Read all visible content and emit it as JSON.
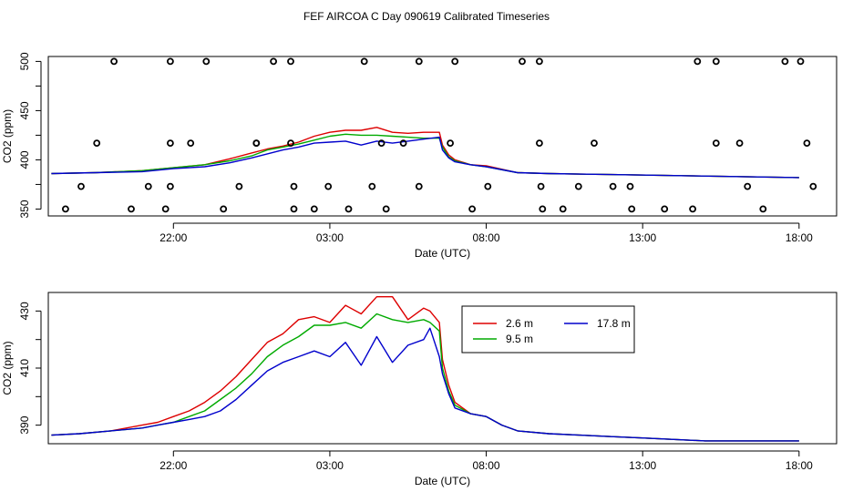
{
  "title": "FEF AIRCOA C  Day 090619  Calibrated Timeseries",
  "chart_data": [
    {
      "type": "scatter+line",
      "id": "top",
      "xlabel": "Date (UTC)",
      "ylabel": "CO2 (ppm)",
      "xlim": [
        -4.0,
        21.2
      ],
      "ylim": [
        343,
        505
      ],
      "x_ticks": [
        {
          "v": 0,
          "label": "22:00"
        },
        {
          "v": 5,
          "label": "03:00"
        },
        {
          "v": 10,
          "label": "08:00"
        },
        {
          "v": 15,
          "label": "13:00"
        },
        {
          "v": 20,
          "label": "18:00"
        }
      ],
      "y_ticks": [
        {
          "v": 350,
          "label": "350"
        },
        {
          "v": 400,
          "label": "400"
        },
        {
          "v": 450,
          "label": "450"
        },
        {
          "v": 500,
          "label": "500"
        }
      ],
      "markers": {
        "level_500": [
          -1.9,
          -0.1,
          1.05,
          3.2,
          3.75,
          6.1,
          7.85,
          9.0,
          11.15,
          11.7,
          16.75,
          17.35,
          19.55,
          20.05
        ],
        "level_417": [
          -2.45,
          -0.1,
          0.55,
          2.65,
          3.75,
          7.35,
          8.85,
          11.7,
          13.45,
          17.35,
          18.1,
          20.25
        ],
        "level_373": [
          -2.95,
          -0.8,
          -0.1,
          2.1,
          3.85,
          4.95,
          6.35,
          7.85,
          10.05,
          11.75,
          12.95,
          14.05,
          14.6,
          18.35,
          20.45
        ],
        "level_350": [
          -3.45,
          -1.35,
          -0.25,
          1.6,
          3.85,
          4.5,
          5.6,
          6.8,
          9.55,
          11.8,
          12.45,
          14.65,
          15.7,
          16.6,
          18.85
        ],
        "level_417_on_trace": [
          2.65,
          6.65
        ]
      },
      "series": [
        {
          "name": "2.6 m",
          "color": "#dd0000",
          "x": [
            -3.9,
            -2.5,
            -1,
            0,
            1,
            1.8,
            2.5,
            3,
            3.5,
            4,
            4.5,
            5,
            5.5,
            6,
            6.5,
            7,
            7.5,
            8,
            8.5,
            8.6,
            8.8,
            9,
            9.5,
            10,
            11,
            12,
            14,
            16,
            18,
            20
          ],
          "y": [
            386,
            387,
            389,
            392,
            395,
            401,
            407,
            411,
            414,
            418,
            424,
            428,
            430,
            430,
            433,
            428,
            427,
            428,
            428,
            415,
            405,
            400,
            395,
            394,
            387,
            386,
            385,
            384,
            383,
            382
          ]
        },
        {
          "name": "9.5 m",
          "color": "#00aa00",
          "x": [
            -3.9,
            -2.5,
            -1,
            0,
            1,
            1.8,
            2.5,
            3,
            3.5,
            4,
            4.5,
            5,
            5.5,
            6,
            6.5,
            7,
            7.5,
            8,
            8.5,
            8.6,
            8.8,
            9,
            9.5,
            10,
            11,
            12,
            14,
            16,
            18,
            20
          ],
          "y": [
            386,
            387,
            389,
            392,
            395,
            399,
            404,
            410,
            413,
            416,
            420,
            424,
            426,
            425,
            425,
            424,
            423,
            422,
            422,
            413,
            403,
            399,
            395,
            393,
            387,
            386,
            385,
            384,
            383,
            382
          ]
        },
        {
          "name": "17.8 m",
          "color": "#0000cc",
          "x": [
            -3.9,
            -2.5,
            -1,
            0,
            1,
            1.8,
            2.5,
            3,
            3.5,
            4,
            4.5,
            5,
            5.5,
            6,
            6.5,
            7,
            7.5,
            8,
            8.5,
            8.6,
            8.8,
            9,
            9.5,
            10,
            11,
            12,
            14,
            16,
            18,
            20
          ],
          "y": [
            386,
            387,
            388,
            391,
            393,
            397,
            402,
            406,
            410,
            413,
            417,
            418,
            419,
            415,
            419,
            417,
            419,
            421,
            423,
            410,
            402,
            398,
            395,
            393,
            387,
            386,
            385,
            384,
            383,
            382
          ]
        }
      ]
    },
    {
      "type": "line",
      "id": "bottom",
      "xlabel": "Date (UTC)",
      "ylabel": "CO2 (ppm)",
      "xlim": [
        -4.0,
        21.2
      ],
      "ylim": [
        383.5,
        436.5
      ],
      "x_ticks": [
        {
          "v": 0,
          "label": "22:00"
        },
        {
          "v": 5,
          "label": "03:00"
        },
        {
          "v": 10,
          "label": "08:00"
        },
        {
          "v": 15,
          "label": "13:00"
        },
        {
          "v": 20,
          "label": "18:00"
        }
      ],
      "y_ticks": [
        {
          "v": 390,
          "label": "390"
        },
        {
          "v": 410,
          "label": "410"
        },
        {
          "v": 430,
          "label": "430"
        }
      ],
      "legend": {
        "position": "top-right-of-center",
        "entries": [
          "2.6 m",
          "17.8 m",
          "9.5 m"
        ]
      },
      "series": [
        {
          "name": "2.6 m",
          "color": "#dd0000",
          "x": [
            -3.9,
            -3,
            -2,
            -1,
            -0.5,
            0,
            0.5,
            1,
            1.5,
            2,
            2.5,
            3,
            3.5,
            4,
            4.5,
            5,
            5.5,
            6,
            6.5,
            7,
            7.5,
            8,
            8.2,
            8.5,
            8.6,
            8.8,
            9,
            9.5,
            10,
            10.5,
            11,
            12,
            13,
            14,
            15,
            16,
            17,
            18,
            19,
            20
          ],
          "y": [
            386.5,
            387,
            388,
            390,
            391,
            393,
            395,
            398,
            402,
            407,
            413,
            419,
            422,
            427,
            428,
            426,
            432,
            429,
            435,
            435,
            427,
            431,
            430,
            426,
            413,
            404,
            398,
            394,
            393,
            390,
            388,
            387,
            386.5,
            386,
            385.5,
            385,
            384.5,
            384.5,
            384.5,
            384.5
          ]
        },
        {
          "name": "9.5 m",
          "color": "#00aa00",
          "x": [
            -3.9,
            -3,
            -2,
            -1,
            -0.5,
            0,
            0.5,
            1,
            1.5,
            2,
            2.5,
            3,
            3.5,
            4,
            4.5,
            5,
            5.5,
            6,
            6.5,
            7,
            7.5,
            8,
            8.2,
            8.5,
            8.6,
            8.8,
            9,
            9.5,
            10,
            10.5,
            11,
            12,
            13,
            14,
            15,
            16,
            17,
            18,
            19,
            20
          ],
          "y": [
            386.5,
            387,
            388,
            389,
            390,
            391,
            393,
            395,
            399,
            403,
            408,
            414,
            418,
            421,
            425,
            425,
            426,
            424,
            429,
            427,
            426,
            427,
            426,
            423,
            410,
            402,
            397,
            394,
            393,
            390,
            388,
            387,
            386.5,
            386,
            385.5,
            385,
            384.5,
            384.5,
            384.5,
            384.5
          ]
        },
        {
          "name": "17.8 m",
          "color": "#0000cc",
          "x": [
            -3.9,
            -3,
            -2,
            -1,
            -0.5,
            0,
            0.5,
            1,
            1.5,
            2,
            2.5,
            3,
            3.5,
            4,
            4.5,
            5,
            5.5,
            6,
            6.5,
            7,
            7.5,
            8,
            8.2,
            8.5,
            8.6,
            8.8,
            9,
            9.5,
            10,
            10.5,
            11,
            12,
            13,
            14,
            15,
            16,
            17,
            18,
            19,
            20
          ],
          "y": [
            386.5,
            387,
            388,
            389,
            390,
            391,
            392,
            393,
            395,
            399,
            404,
            409,
            412,
            414,
            416,
            414,
            419,
            411,
            421,
            412,
            418,
            420,
            424,
            414,
            408,
            401,
            396,
            394,
            393,
            390,
            388,
            387,
            386.5,
            386,
            385.5,
            385,
            384.5,
            384.5,
            384.5,
            384.5
          ]
        }
      ]
    }
  ]
}
